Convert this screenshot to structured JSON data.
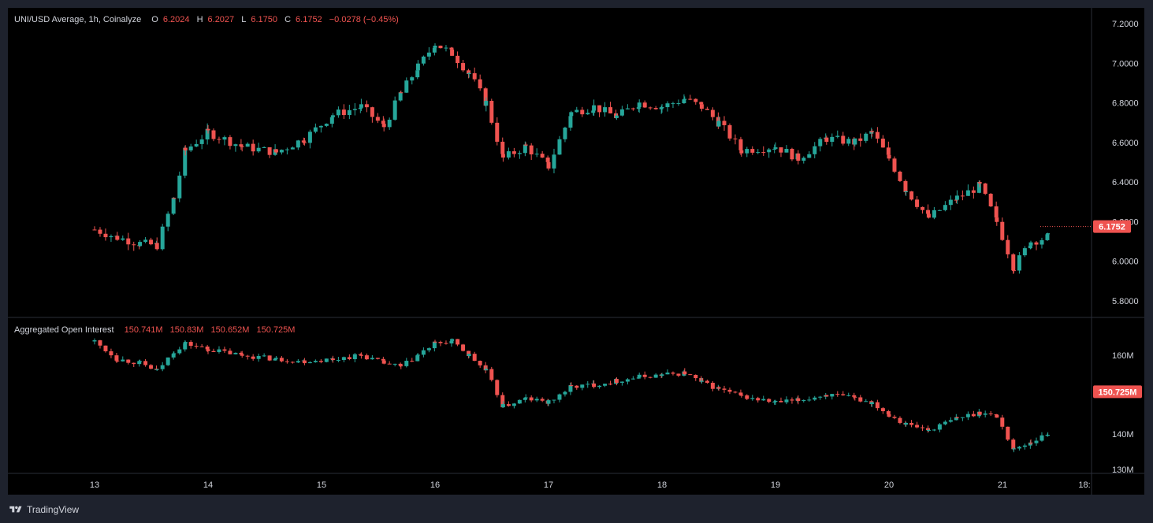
{
  "legend_price": {
    "symbol": "UNI/USD Average, 1h, Coinalyze",
    "open_label": "O",
    "open": "6.2024",
    "high_label": "H",
    "high": "6.2027",
    "low_label": "L",
    "low": "6.1750",
    "close_label": "C",
    "close": "6.1752",
    "change": "−0.0278 (−0.45%)"
  },
  "legend_oi": {
    "name": "Aggregated Open Interest",
    "v1": "150.741M",
    "v2": "150.83M",
    "v3": "150.652M",
    "v4": "150.725M"
  },
  "price_badge": "6.1752",
  "oi_badge": "150.725M",
  "footer": {
    "brand": "TradingView"
  },
  "colors": {
    "up": "#26a69a",
    "down": "#ef5350",
    "background": "#000000",
    "frame": "#1e222d"
  },
  "chart_data": [
    {
      "type": "candlestick",
      "title": "UNI/USD Average, 1h, Coinalyze",
      "ylim": [
        5.7,
        7.3
      ],
      "y_ticks": [
        "7.2000",
        "7.0000",
        "6.8000",
        "6.6000",
        "6.4000",
        "6.2000",
        "6.0000",
        "5.8000"
      ],
      "x_ticks": [
        "13",
        "14",
        "15",
        "16",
        "17",
        "18",
        "19",
        "20",
        "21",
        "18:"
      ],
      "series": [
        {
          "values": [
            [
              0,
              6.16
            ],
            [
              0.2,
              6.12
            ],
            [
              0.4,
              6.09
            ],
            [
              0.55,
              6.08
            ],
            [
              0.7,
              6.32
            ],
            [
              0.8,
              6.56
            ],
            [
              1.0,
              6.65
            ],
            [
              1.3,
              6.58
            ],
            [
              1.6,
              6.55
            ],
            [
              1.85,
              6.62
            ],
            [
              2.1,
              6.74
            ],
            [
              2.35,
              6.78
            ],
            [
              2.55,
              6.68
            ],
            [
              2.7,
              6.85
            ],
            [
              2.85,
              6.98
            ],
            [
              3.0,
              7.1
            ],
            [
              3.15,
              7.05
            ],
            [
              3.3,
              6.95
            ],
            [
              3.45,
              6.8
            ],
            [
              3.6,
              6.52
            ],
            [
              3.8,
              6.58
            ],
            [
              4.0,
              6.48
            ],
            [
              4.2,
              6.75
            ],
            [
              4.4,
              6.78
            ],
            [
              4.6,
              6.73
            ],
            [
              4.8,
              6.8
            ],
            [
              5.0,
              6.78
            ],
            [
              5.2,
              6.82
            ],
            [
              5.35,
              6.78
            ],
            [
              5.5,
              6.7
            ],
            [
              5.7,
              6.56
            ],
            [
              6.0,
              6.58
            ],
            [
              6.2,
              6.52
            ],
            [
              6.45,
              6.62
            ],
            [
              6.7,
              6.6
            ],
            [
              6.85,
              6.65
            ],
            [
              7.0,
              6.52
            ],
            [
              7.15,
              6.36
            ],
            [
              7.35,
              6.22
            ],
            [
              7.6,
              6.32
            ],
            [
              7.8,
              6.38
            ],
            [
              7.95,
              6.2
            ],
            [
              8.1,
              5.97
            ],
            [
              8.25,
              6.1
            ],
            [
              8.4,
              6.12
            ],
            [
              8.6,
              6.15
            ],
            [
              8.85,
              6.18
            ],
            [
              9.05,
              6.16
            ],
            [
              9.25,
              6.14
            ],
            [
              9.45,
              6.07
            ],
            [
              9.65,
              6.0
            ],
            [
              9.85,
              5.96
            ],
            [
              10.0,
              6.04
            ],
            [
              10.2,
              6.02
            ],
            [
              10.4,
              6.01
            ],
            [
              10.6,
              5.99
            ],
            [
              10.8,
              6.01
            ],
            [
              11.0,
              6.15
            ],
            [
              11.2,
              6.27
            ],
            [
              11.45,
              6.3
            ],
            [
              11.65,
              6.31
            ],
            [
              11.85,
              6.28
            ],
            [
              12.0,
              6.22
            ],
            [
              12.15,
              6.4
            ],
            [
              12.3,
              6.5
            ],
            [
              12.5,
              6.45
            ],
            [
              12.7,
              6.44
            ],
            [
              12.85,
              6.3
            ],
            [
              13.05,
              6.35
            ],
            [
              13.2,
              6.38
            ],
            [
              13.35,
              6.33
            ],
            [
              13.5,
              6.28
            ],
            [
              13.65,
              6.22
            ],
            [
              13.75,
              6.14
            ],
            [
              13.95,
              6.1752
            ]
          ]
        }
      ]
    },
    {
      "type": "candlestick",
      "title": "Aggregated Open Interest",
      "ylim": [
        130,
        165
      ],
      "y_ticks": [
        "160M",
        "140M",
        "130M"
      ],
      "series": [
        {
          "values": [
            [
              0,
              163.5
            ],
            [
              0.2,
              159.0
            ],
            [
              0.4,
              158.0
            ],
            [
              0.55,
              156.0
            ],
            [
              0.7,
              161.0
            ],
            [
              0.8,
              163.0
            ],
            [
              1.0,
              161.5
            ],
            [
              1.3,
              160.0
            ],
            [
              1.6,
              159.0
            ],
            [
              1.85,
              158.5
            ],
            [
              2.1,
              159.0
            ],
            [
              2.35,
              160.0
            ],
            [
              2.55,
              158.0
            ],
            [
              2.7,
              157.0
            ],
            [
              2.85,
              160.0
            ],
            [
              3.0,
              163.0
            ],
            [
              3.15,
              163.5
            ],
            [
              3.3,
              160.0
            ],
            [
              3.45,
              156.0
            ],
            [
              3.6,
              147.0
            ],
            [
              3.8,
              149.0
            ],
            [
              4.0,
              148.0
            ],
            [
              4.2,
              152.0
            ],
            [
              4.4,
              152.5
            ],
            [
              4.6,
              153.5
            ],
            [
              4.8,
              154.5
            ],
            [
              5.0,
              155.0
            ],
            [
              5.2,
              155.5
            ],
            [
              5.35,
              153.0
            ],
            [
              5.5,
              151.5
            ],
            [
              5.7,
              149.5
            ],
            [
              6.0,
              148.0
            ],
            [
              6.2,
              148.5
            ],
            [
              6.45,
              150.0
            ],
            [
              6.7,
              149.0
            ],
            [
              6.85,
              148.0
            ],
            [
              7.0,
              145.0
            ],
            [
              7.15,
              142.5
            ],
            [
              7.35,
              141.0
            ],
            [
              7.6,
              144.0
            ],
            [
              7.8,
              145.5
            ],
            [
              7.95,
              144.5
            ],
            [
              8.1,
              136.0
            ],
            [
              8.25,
              138.0
            ],
            [
              8.4,
              140.0
            ],
            [
              8.6,
              140.5
            ],
            [
              8.85,
              140.0
            ],
            [
              9.05,
              140.5
            ],
            [
              9.25,
              140.5
            ],
            [
              9.45,
              140.5
            ],
            [
              9.65,
              141.0
            ],
            [
              9.85,
              142.0
            ],
            [
              10.0,
              145.0
            ],
            [
              10.2,
              144.5
            ],
            [
              10.4,
              143.5
            ],
            [
              10.6,
              144.0
            ],
            [
              10.8,
              145.5
            ],
            [
              11.0,
              148.0
            ],
            [
              11.2,
              151.5
            ],
            [
              11.45,
              152.0
            ],
            [
              11.65,
              152.0
            ],
            [
              11.85,
              151.0
            ],
            [
              12.0,
              150.0
            ],
            [
              12.15,
              153.0
            ],
            [
              12.3,
              155.5
            ],
            [
              12.5,
              154.0
            ],
            [
              12.7,
              155.0
            ],
            [
              12.85,
              154.0
            ],
            [
              13.05,
              154.5
            ],
            [
              13.2,
              154.0
            ],
            [
              13.35,
              153.0
            ],
            [
              13.5,
              151.5
            ],
            [
              13.65,
              150.0
            ],
            [
              13.75,
              149.0
            ],
            [
              13.95,
              150.725
            ]
          ]
        }
      ]
    }
  ]
}
